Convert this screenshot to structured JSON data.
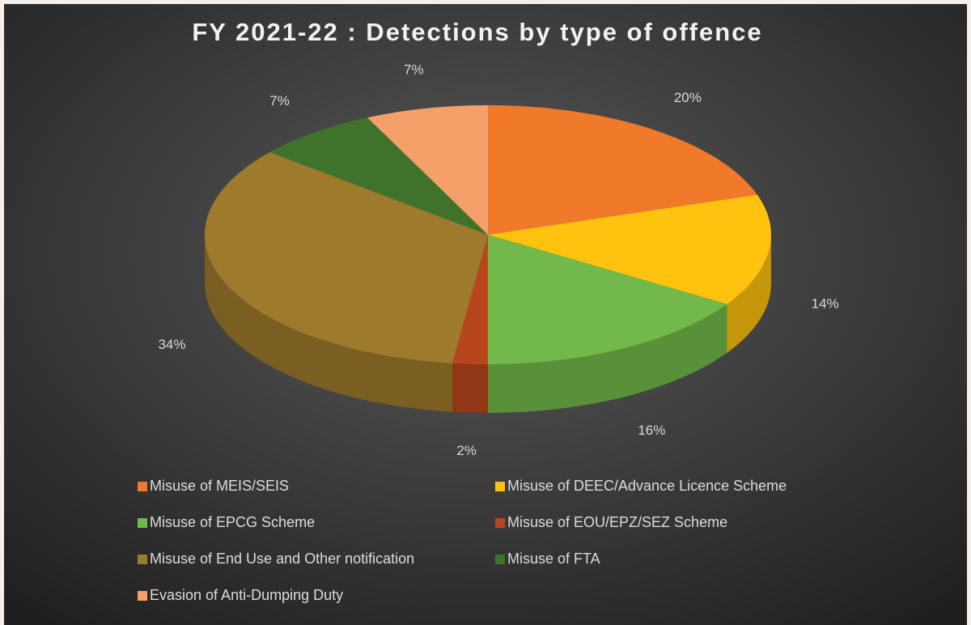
{
  "chart_data": {
    "type": "pie",
    "title": "FY 2021-22 : Detections by type of offence",
    "categories": [
      "Misuse of MEIS/SEIS",
      "Misuse of DEEC/Advance Licence Scheme",
      "Misuse of EPCG Scheme",
      "Misuse of EOU/EPZ/SEZ Scheme",
      "Misuse of End Use and Other notification",
      "Misuse of FTA",
      "Evasion of Anti-Dumping Duty"
    ],
    "values": [
      20,
      14,
      16,
      2,
      34,
      7,
      7
    ],
    "value_labels": [
      "20%",
      "14%",
      "16%",
      "2%",
      "34%",
      "7%",
      "7%"
    ],
    "colors": [
      "#f07a2a",
      "#ffc20e",
      "#72b84a",
      "#b8461c",
      "#9e7a2c",
      "#3f732c",
      "#f5a068"
    ],
    "legend": "bottom"
  }
}
